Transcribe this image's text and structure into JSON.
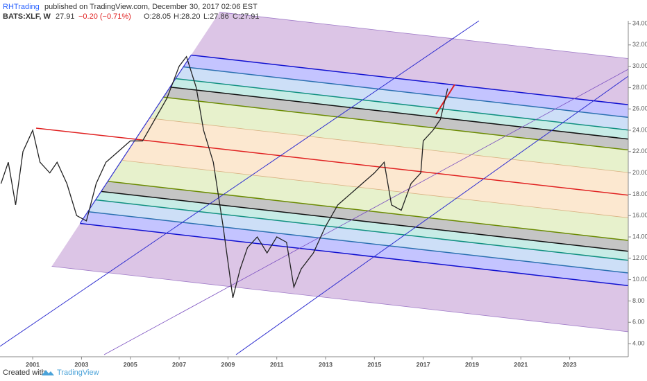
{
  "header": {
    "author": "RHTrading",
    "published": "published on TradingView.com, December 30, 2017 02:06 EST",
    "symbol": "BATS:XLF, W",
    "last": "27.91",
    "change": "−0.20 (−0.71%)",
    "open": "O:28.05",
    "high": "H:28.20",
    "low": "L:27.86",
    "close": "C:27.91"
  },
  "footer": {
    "created": "Created with",
    "brand": "TradingView"
  },
  "chart_data": {
    "type": "line",
    "color": "#222222",
    "x": [
      1999.7,
      2000.0,
      2000.3,
      2000.6,
      2001.0,
      2001.3,
      2001.7,
      2002.0,
      2002.4,
      2002.8,
      2003.2,
      2003.6,
      2004.0,
      2004.5,
      2005.0,
      2005.5,
      2006.0,
      2006.5,
      2007.0,
      2007.3,
      2007.7,
      2008.0,
      2008.4,
      2008.8,
      2009.2,
      2009.5,
      2009.8,
      2010.2,
      2010.6,
      2011.0,
      2011.4,
      2011.7,
      2012.0,
      2012.5,
      2013.0,
      2013.5,
      2014.0,
      2014.5,
      2015.0,
      2015.4,
      2015.7,
      2016.1,
      2016.5,
      2016.9,
      2017.0,
      2017.4,
      2017.7,
      2018.0
    ],
    "values": [
      19,
      21,
      17,
      22,
      24,
      21,
      20,
      21,
      19,
      16,
      15.5,
      19,
      21,
      22,
      23,
      23,
      25,
      27,
      30,
      30.9,
      28,
      24,
      21,
      15,
      8.3,
      11,
      13,
      14,
      12.5,
      14,
      13.5,
      9.3,
      11,
      12.5,
      15,
      17,
      18,
      19,
      20,
      21,
      17,
      16.5,
      19,
      20,
      23,
      24,
      25,
      27.91
    ],
    "xlim": [
      1999.66,
      2025.4
    ],
    "xticks": [
      2001,
      2003,
      2005,
      2007,
      2009,
      2011,
      2013,
      2015,
      2017,
      2019,
      2021,
      2023
    ],
    "ylim": [
      2.77,
      34.26
    ],
    "yticks": [
      {
        "value": 4,
        "label": "4.00"
      },
      {
        "value": 6,
        "label": "6.00"
      },
      {
        "value": 8,
        "label": "8.00"
      },
      {
        "value": 10,
        "label": "10.00"
      },
      {
        "value": 12,
        "label": "12.00"
      },
      {
        "value": 14,
        "label": "14.00"
      },
      {
        "value": 16,
        "label": "16.00"
      },
      {
        "value": 18,
        "label": "18.00"
      },
      {
        "value": 20,
        "label": "20.00"
      },
      {
        "value": 22,
        "label": "22.00"
      },
      {
        "value": 24,
        "label": "24.00"
      },
      {
        "value": 26,
        "label": "26.00"
      },
      {
        "value": 28,
        "label": "28.00"
      },
      {
        "value": 30,
        "label": "30.00"
      },
      {
        "value": 32,
        "label": "32.00"
      },
      {
        "value": 34,
        "label": "34.00"
      }
    ]
  }
}
